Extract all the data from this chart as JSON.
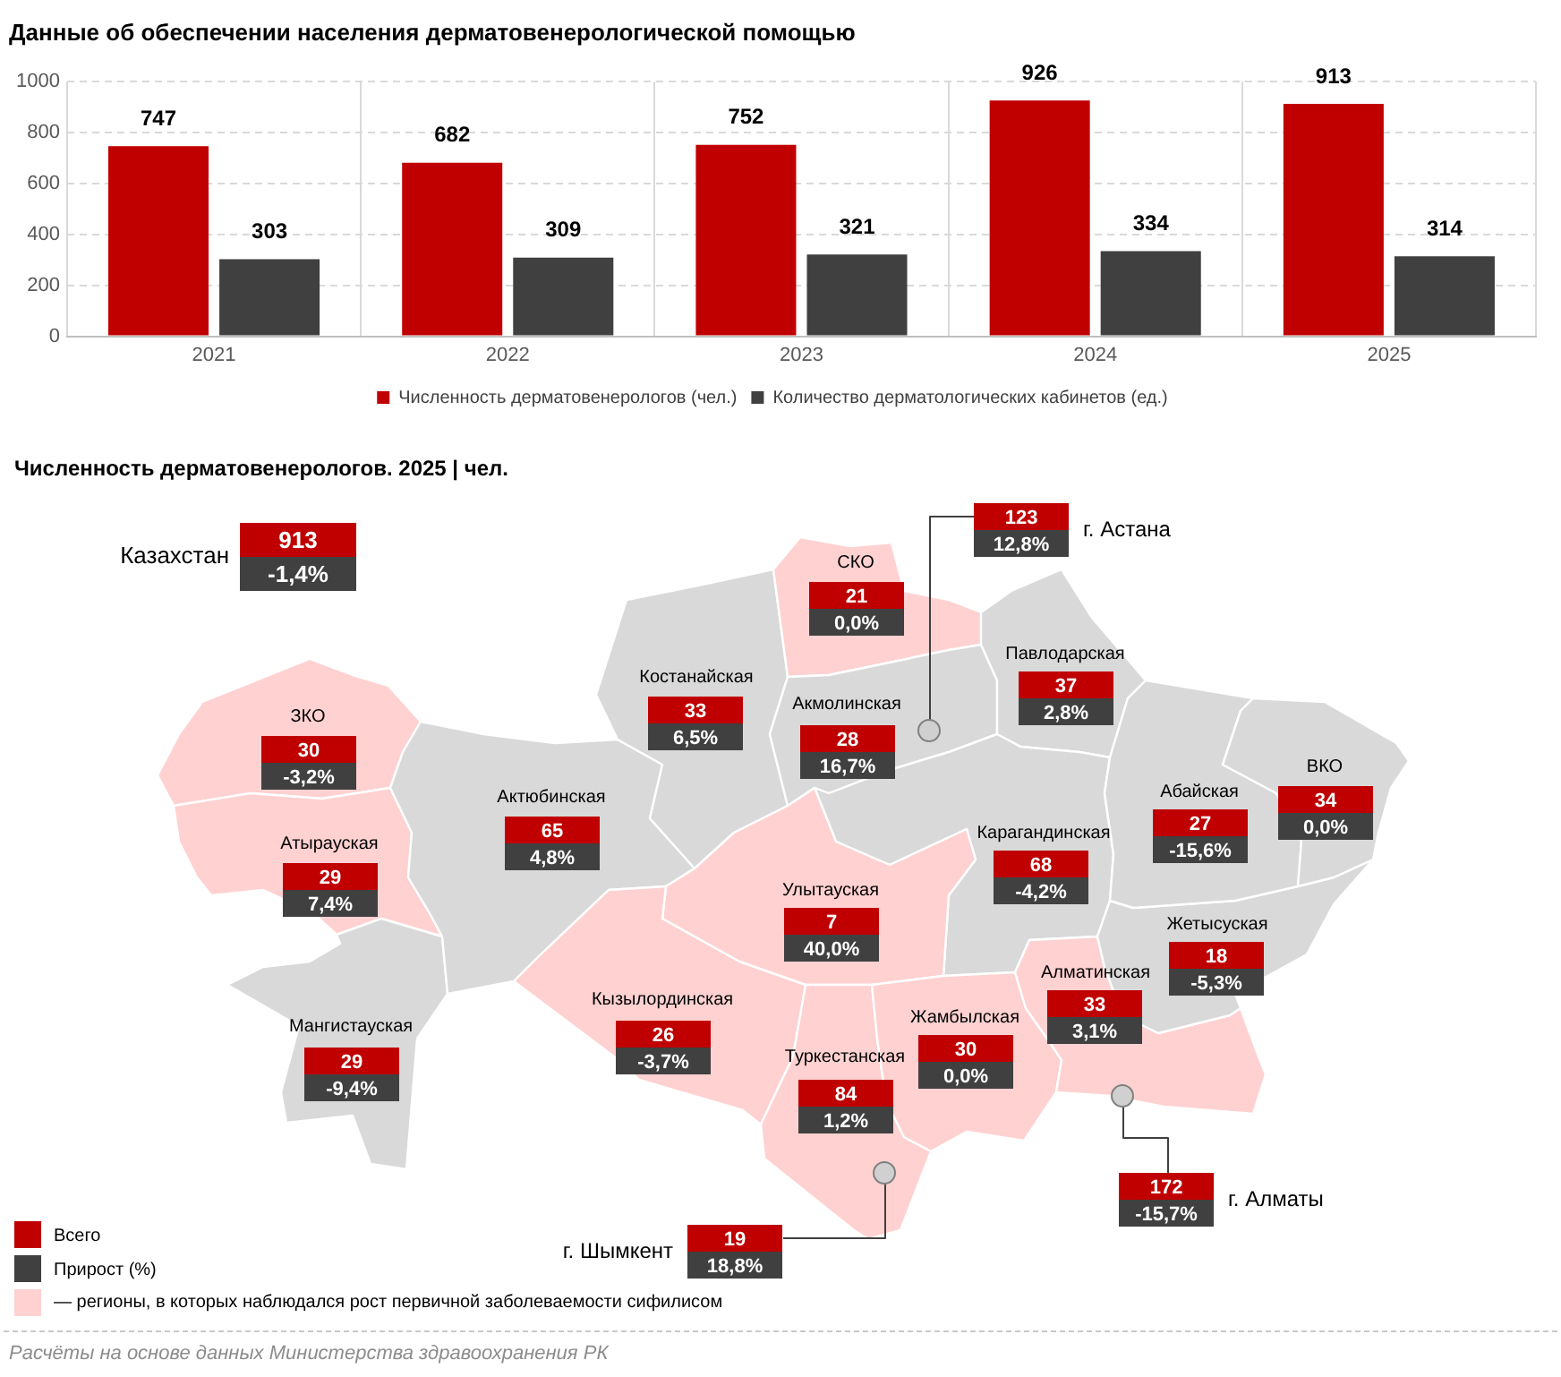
{
  "chart_data": [
    {
      "type": "bar",
      "title": "Данные об обеспечении населения дерматовенерологической помощью",
      "categories": [
        "2021",
        "2022",
        "2023",
        "2024",
        "2025"
      ],
      "series": [
        {
          "name": "Численность дерматовенерологов (чел.)",
          "color": "#c00000",
          "values": [
            747,
            682,
            752,
            926,
            913
          ]
        },
        {
          "name": "Количество дерматологических кабинетов (ед.)",
          "color": "#404040",
          "values": [
            303,
            309,
            321,
            334,
            314
          ]
        }
      ],
      "ylim": [
        0,
        1000
      ],
      "yticks": [
        0,
        200,
        400,
        600,
        800,
        1000
      ],
      "grid": true,
      "legend": "bottom",
      "data_labels": true
    },
    {
      "type": "other",
      "title": "Численность дерматовенерологов. 2025 | чел.",
      "categories": [
        "Казахстан",
        "ЗКО",
        "Атырауская",
        "Мангистауская",
        "Актюбинская",
        "Костанайская",
        "СКО",
        "Акмолинская",
        "г. Астана",
        "Павлодарская",
        "Карагандинская",
        "Улытауская",
        "Кызылординская",
        "Туркестанская",
        "г. Шымкент",
        "Жамбылская",
        "Алматинская",
        "г. Алматы",
        "Жетысуская",
        "Абайская",
        "ВКО"
      ],
      "colors": [
        null,
        "#ffd1d1",
        "#ffd1d1",
        "#d9d9d9",
        "#d9d9d9",
        "#d9d9d9",
        "#ffd1d1",
        "#d9d9d9",
        null,
        "#d9d9d9",
        "#d9d9d9",
        "#ffd1d1",
        "#ffd1d1",
        "#ffd1d1",
        null,
        "#ffd1d1",
        "#ffd1d1",
        null,
        "#d9d9d9",
        "#d9d9d9",
        "#d9d9d9"
      ],
      "series": [
        {
          "name": "Всего",
          "color": "#c00000",
          "values": [
            913,
            30,
            29,
            29,
            65,
            33,
            21,
            28,
            123,
            37,
            68,
            7,
            26,
            84,
            19,
            30,
            33,
            172,
            18,
            27,
            34
          ]
        },
        {
          "name": "Прирост (%)",
          "color": "#404040",
          "values": [
            -1.4,
            -3.2,
            7.4,
            -9.4,
            4.8,
            6.5,
            0.0,
            16.7,
            12.8,
            2.8,
            -4.2,
            40.0,
            -3.7,
            1.2,
            18.8,
            0.0,
            3.1,
            -15.7,
            -5.3,
            -15.6,
            0.0
          ],
          "value_labels": [
            "-1,4%",
            "-3,2%",
            "7,4%",
            "-9,4%",
            "4,8%",
            "6,5%",
            "0,0%",
            "16,7%",
            "12,8%",
            "2,8%",
            "-4,2%",
            "40,0%",
            "-3,7%",
            "1,2%",
            "18,8%",
            "0,0%",
            "3,1%",
            "-15,7%",
            "-5,3%",
            "-15,6%",
            "0,0%"
          ]
        }
      ],
      "legend": "bottom left",
      "data_labels": true,
      "annotations": [
        "— регионы, в которых наблюдался рост первичной заболеваемости сифилисом",
        "Расчёты на основе данных Министерства здравоохранения РК"
      ]
    }
  ]
}
